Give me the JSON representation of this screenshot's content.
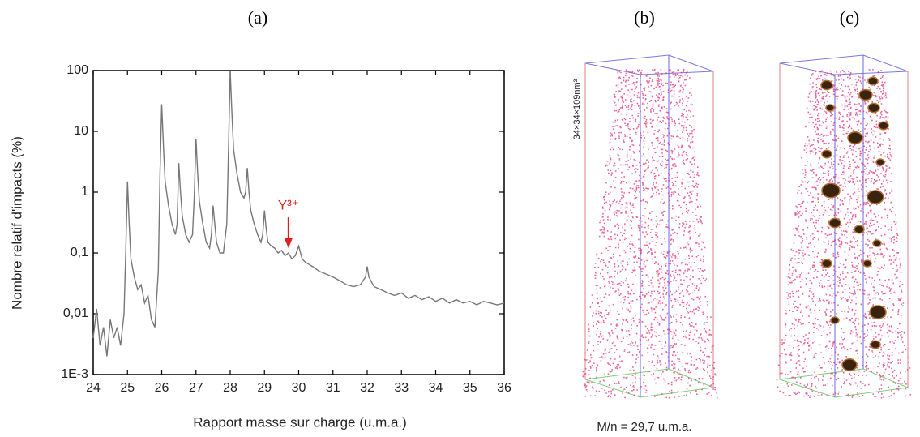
{
  "chart_data": {
    "type": "line",
    "title": "(a)",
    "xlabel": "Rapport masse sur charge (u.m.a.)",
    "ylabel": "Nombre relatif d'impacts (%)",
    "yscale": "log",
    "xlim": [
      24,
      36
    ],
    "ylim": [
      0.001,
      100
    ],
    "xticks": [
      24,
      25,
      26,
      27,
      28,
      29,
      30,
      31,
      32,
      33,
      34,
      35,
      36
    ],
    "yticks": [
      {
        "value": 0.001,
        "label": "1E-3"
      },
      {
        "value": 0.01,
        "label": "0,01"
      },
      {
        "value": 0.1,
        "label": "0,1"
      },
      1,
      10,
      100
    ],
    "x": [
      24.0,
      24.1,
      24.2,
      24.3,
      24.4,
      24.5,
      24.6,
      24.7,
      24.8,
      24.9,
      24.95,
      25.0,
      25.05,
      25.1,
      25.2,
      25.3,
      25.4,
      25.5,
      25.6,
      25.7,
      25.8,
      25.9,
      25.95,
      26.0,
      26.05,
      26.1,
      26.2,
      26.3,
      26.4,
      26.45,
      26.5,
      26.55,
      26.6,
      26.7,
      26.8,
      26.9,
      26.95,
      27.0,
      27.05,
      27.1,
      27.2,
      27.3,
      27.4,
      27.45,
      27.5,
      27.55,
      27.6,
      27.7,
      27.8,
      27.9,
      27.95,
      28.0,
      28.05,
      28.1,
      28.2,
      28.3,
      28.4,
      28.45,
      28.5,
      28.55,
      28.6,
      28.7,
      28.8,
      28.9,
      28.95,
      29.0,
      29.05,
      29.1,
      29.2,
      29.3,
      29.4,
      29.5,
      29.6,
      29.7,
      29.8,
      29.9,
      30.0,
      30.1,
      30.2,
      30.4,
      30.6,
      30.8,
      31.0,
      31.2,
      31.4,
      31.6,
      31.8,
      31.95,
      32.0,
      32.05,
      32.2,
      32.4,
      32.6,
      32.8,
      33.0,
      33.2,
      33.4,
      33.6,
      33.8,
      34.0,
      34.2,
      34.4,
      34.6,
      34.8,
      35.0,
      35.2,
      35.4,
      35.6,
      35.8,
      36.0
    ],
    "series": [
      {
        "color": "#777777",
        "values": [
          0.004,
          0.012,
          0.003,
          0.006,
          0.002,
          0.008,
          0.004,
          0.006,
          0.003,
          0.01,
          0.1,
          1.5,
          0.3,
          0.08,
          0.04,
          0.025,
          0.03,
          0.015,
          0.02,
          0.008,
          0.006,
          0.05,
          2,
          28,
          6,
          1.5,
          0.6,
          0.3,
          0.2,
          0.3,
          3,
          1,
          0.4,
          0.2,
          0.15,
          0.2,
          0.8,
          7.5,
          2,
          0.7,
          0.3,
          0.15,
          0.12,
          0.2,
          0.6,
          0.3,
          0.15,
          0.1,
          0.1,
          0.3,
          5,
          100,
          20,
          5,
          2,
          1,
          0.8,
          1,
          2.5,
          1,
          0.5,
          0.3,
          0.2,
          0.15,
          0.2,
          0.5,
          0.25,
          0.15,
          0.13,
          0.12,
          0.1,
          0.11,
          0.09,
          0.1,
          0.08,
          0.09,
          0.13,
          0.08,
          0.07,
          0.06,
          0.05,
          0.045,
          0.04,
          0.035,
          0.03,
          0.028,
          0.03,
          0.04,
          0.06,
          0.04,
          0.028,
          0.025,
          0.022,
          0.02,
          0.022,
          0.018,
          0.02,
          0.017,
          0.019,
          0.016,
          0.018,
          0.015,
          0.017,
          0.015,
          0.016,
          0.014,
          0.016,
          0.015,
          0.014,
          0.015
        ]
      }
    ],
    "annotation": {
      "text": "Y³⁺",
      "x": 29.7,
      "y": 0.12,
      "color": "#e02020"
    }
  },
  "panel_b": {
    "label": "(b)",
    "dimensions": "34×34×109nm³",
    "caption": "M/n = 29,7 u.m.a."
  },
  "panel_c": {
    "label": "(c)"
  }
}
